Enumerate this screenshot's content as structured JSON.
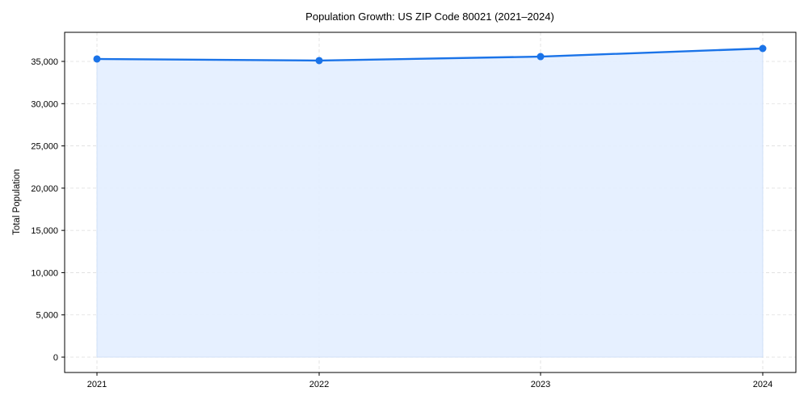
{
  "chart_data": {
    "type": "area",
    "title": "Population Growth: US ZIP Code 80021 (2021–2024)",
    "xlabel": "",
    "ylabel": "Total Population",
    "categories": [
      "2021",
      "2022",
      "2023",
      "2024"
    ],
    "series": [
      {
        "name": "Total Population",
        "values": [
          35290,
          35100,
          35570,
          36530
        ]
      }
    ],
    "ylim": [
      -1800,
      38300
    ],
    "yticks": [
      0,
      5000,
      10000,
      15000,
      20000,
      25000,
      30000,
      35000
    ],
    "ytick_labels": [
      "0",
      "5,000",
      "10,000",
      "15,000",
      "20,000",
      "25,000",
      "30,000",
      "35,000"
    ],
    "grid": true,
    "legend": "none",
    "colors": {
      "line": "#1a73e8",
      "fill": "#e3eeff",
      "grid": "#dddddd"
    }
  }
}
